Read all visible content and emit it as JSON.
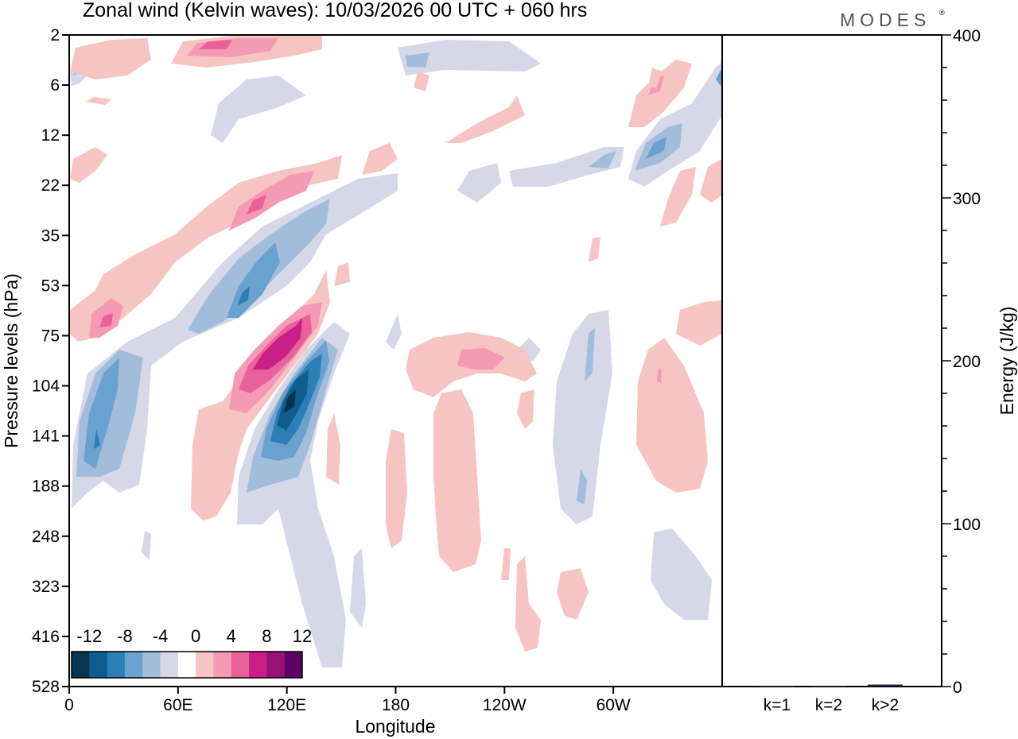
{
  "chart_data": [
    {
      "type": "heatmap",
      "title": "Zonal wind (Kelvin waves):  10/03/2026  00 UTC  + 060 hrs",
      "xlabel": "Longitude",
      "ylabel": "Pressure levels (hPa)",
      "x_ticks": [
        "0",
        "60E",
        "120E",
        "180",
        "120W",
        "60W"
      ],
      "y_ticks": [
        "2",
        "6",
        "12",
        "22",
        "35",
        "53",
        "75",
        "104",
        "141",
        "188",
        "248",
        "323",
        "416",
        "528"
      ],
      "colorbar": {
        "labels": [
          "-12",
          "-8",
          "-4",
          "0",
          "4",
          "8",
          "12"
        ],
        "levels": [
          -14,
          -12,
          -10,
          -8,
          -6,
          -4,
          -2,
          2,
          4,
          6,
          8,
          10,
          12,
          14
        ],
        "colors": [
          "#08344f",
          "#0f5d8e",
          "#2b7fb6",
          "#6aa1cf",
          "#a2bcdc",
          "#d6d8e8",
          "#ffffff",
          "#f7c4c4",
          "#f59ab5",
          "#e9619b",
          "#c91e86",
          "#961277",
          "#5c0064"
        ]
      },
      "features": [
        {
          "name": "easterly-band-upper",
          "sign": "negative",
          "peak": -12
        },
        {
          "name": "westerly-band-upper",
          "sign": "positive",
          "peak": 12
        },
        {
          "name": "westerly-column-dateline",
          "sign": "positive",
          "peak": 6
        },
        {
          "name": "westerly-column-60W",
          "sign": "positive",
          "peak": 4
        }
      ]
    },
    {
      "type": "bar",
      "categories": [
        "k=1",
        "k=2",
        "k>2"
      ],
      "values": [
        0.3,
        0.3,
        1.2
      ],
      "ylabel": "Energy (J/kg)",
      "ylim": [
        0,
        400
      ],
      "y_ticks": [
        "0",
        "100",
        "200",
        "300",
        "400"
      ]
    }
  ],
  "brand": "MODES",
  "brand_mark": "®"
}
